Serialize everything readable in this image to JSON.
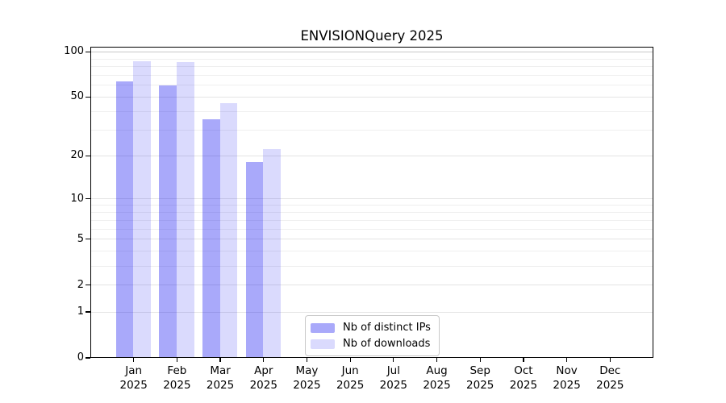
{
  "figure": {
    "background": "#ffffff"
  },
  "chart_data": {
    "type": "bar",
    "title": "ENVISIONQuery 2025",
    "x_labels": [
      [
        "Jan",
        "2025"
      ],
      [
        "Feb",
        "2025"
      ],
      [
        "Mar",
        "2025"
      ],
      [
        "Apr",
        "2025"
      ],
      [
        "May",
        "2025"
      ],
      [
        "Jun",
        "2025"
      ],
      [
        "Jul",
        "2025"
      ],
      [
        "Aug",
        "2025"
      ],
      [
        "Sep",
        "2025"
      ],
      [
        "Oct",
        "2025"
      ],
      [
        "Nov",
        "2025"
      ],
      [
        "Dec",
        "2025"
      ]
    ],
    "series": [
      {
        "name": "Nb of distinct IPs",
        "color_hex": "#a9a9fa",
        "fill_rgba": "rgba(10,10,240,0.35)",
        "values": [
          63,
          59,
          35,
          18,
          0,
          0,
          0,
          0,
          0,
          0,
          0,
          0
        ]
      },
      {
        "name": "Nb of downloads",
        "color_hex": "#dadafd",
        "fill_rgba": "rgba(10,10,240,0.15)",
        "values": [
          86,
          84,
          45,
          22,
          0,
          0,
          0,
          0,
          0,
          0,
          0,
          0
        ]
      }
    ],
    "yscale": "log1p",
    "ylim": [
      0,
      108
    ],
    "ytick_values": [
      0,
      1,
      2,
      5,
      10,
      20,
      50,
      100
    ],
    "ytick_labels": [
      "0",
      "1",
      "2",
      "5",
      "10",
      "20",
      "50",
      "100"
    ],
    "grid_values_minor": [
      3,
      4,
      6,
      7,
      8,
      9,
      30,
      40,
      60,
      70,
      80,
      90
    ],
    "grid_values_major": [
      1,
      2,
      5,
      10,
      20,
      50,
      100
    ],
    "grid": "both",
    "legend_position": "lower center"
  },
  "colors": {
    "spine": "#000000",
    "grid_minor": "#efefef",
    "grid_major": "#e4e4e4",
    "grid_hundred": "#c8c8c8",
    "text": "#000000",
    "legend_border": "#c9c9c9",
    "legend_bg": "#ffffff",
    "bar_dark": "#a9a9fa",
    "bar_light": "#dadafd"
  }
}
